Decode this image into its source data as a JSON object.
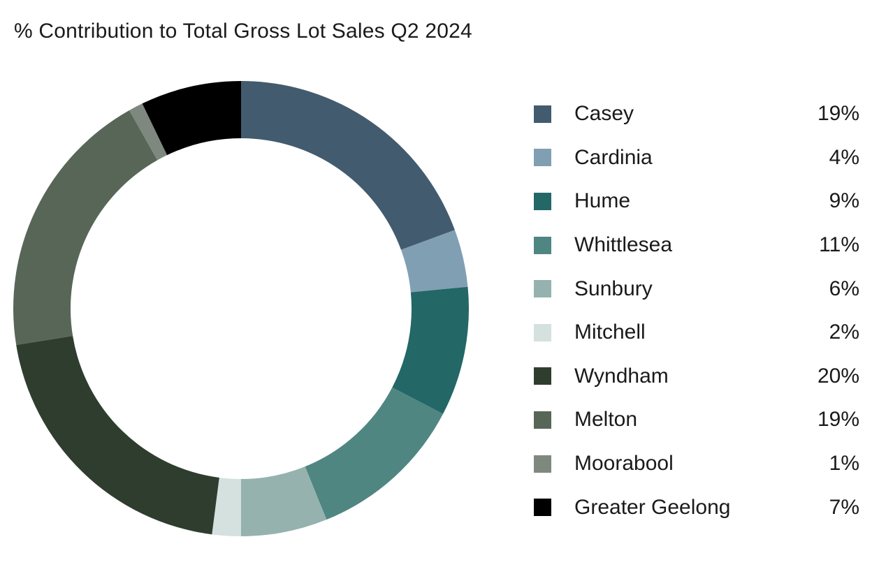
{
  "chart_data": {
    "type": "pie",
    "variant": "donut",
    "title": "% Contribution to Total Gross Lot Sales Q2 2024",
    "legend_position": "right",
    "categories": [
      "Casey",
      "Cardinia",
      "Hume",
      "Whittlesea",
      "Sunbury",
      "Mitchell",
      "Wyndham",
      "Melton",
      "Moorabool",
      "Greater Geelong"
    ],
    "values": [
      19,
      4,
      9,
      11,
      6,
      2,
      20,
      19,
      1,
      7
    ],
    "value_labels": [
      "19%",
      "4%",
      "9%",
      "11%",
      "6%",
      "2%",
      "20%",
      "19%",
      "1%",
      "7%"
    ],
    "colors": [
      "#435b6e",
      "#819fb3",
      "#236767",
      "#4f8682",
      "#95b2ae",
      "#d4e1df",
      "#2f3d2f",
      "#586658",
      "#7e887f",
      "#000000"
    ]
  }
}
